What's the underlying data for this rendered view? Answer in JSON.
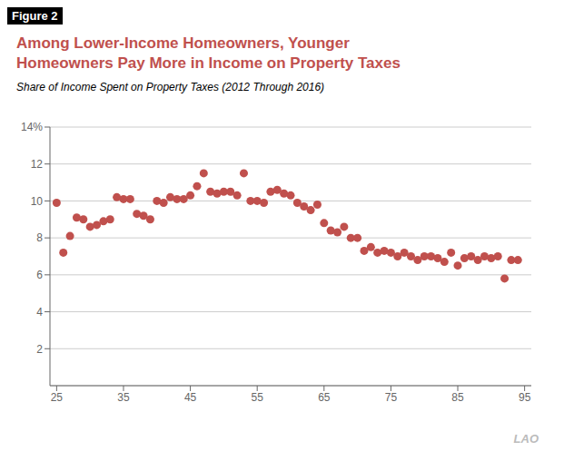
{
  "chart_data": {
    "type": "scatter",
    "title": "Among Lower-Income Homeowners, Younger\nHomeowners Pay More in Income on Property Taxes",
    "subtitle": "Share of Income Spent on Property Taxes (2012 Through 2016)",
    "annotations": [
      "Figure 2",
      "LAO"
    ],
    "x": [
      25,
      26,
      27,
      28,
      29,
      30,
      31,
      32,
      33,
      34,
      35,
      36,
      37,
      38,
      39,
      40,
      41,
      42,
      43,
      44,
      45,
      46,
      47,
      48,
      49,
      50,
      51,
      52,
      53,
      54,
      55,
      56,
      57,
      58,
      59,
      60,
      61,
      62,
      63,
      64,
      65,
      66,
      67,
      68,
      69,
      70,
      71,
      72,
      73,
      74,
      75,
      76,
      77,
      78,
      79,
      80,
      81,
      82,
      83,
      84,
      85,
      86,
      87,
      88,
      89,
      90,
      91,
      92,
      93,
      94
    ],
    "values": [
      9.9,
      7.2,
      8.1,
      9.1,
      9.0,
      8.6,
      8.7,
      8.9,
      9.0,
      10.2,
      10.1,
      10.1,
      9.3,
      9.2,
      9.0,
      10.0,
      9.9,
      10.2,
      10.1,
      10.1,
      10.3,
      10.8,
      11.5,
      10.5,
      10.4,
      10.5,
      10.5,
      10.3,
      11.5,
      10.0,
      10.0,
      9.9,
      10.5,
      10.6,
      10.4,
      10.3,
      9.9,
      9.7,
      9.5,
      9.8,
      8.8,
      8.4,
      8.3,
      8.6,
      8.0,
      8.0,
      7.3,
      7.5,
      7.2,
      7.3,
      7.2,
      7.0,
      7.2,
      7.0,
      6.8,
      7.0,
      7.0,
      6.9,
      6.7,
      7.2,
      6.5,
      6.9,
      7.0,
      6.8,
      7.0,
      6.9,
      7.0,
      5.8,
      6.8,
      6.8
    ],
    "color": "#c0504d",
    "xlim": [
      24,
      96
    ],
    "ylim": [
      0,
      14
    ],
    "xticks": [
      25,
      35,
      45,
      55,
      65,
      75,
      85,
      95
    ],
    "yticks": [
      2,
      4,
      6,
      8,
      10,
      12,
      {
        "value": 14,
        "label": "14%"
      }
    ],
    "grid": "y"
  }
}
